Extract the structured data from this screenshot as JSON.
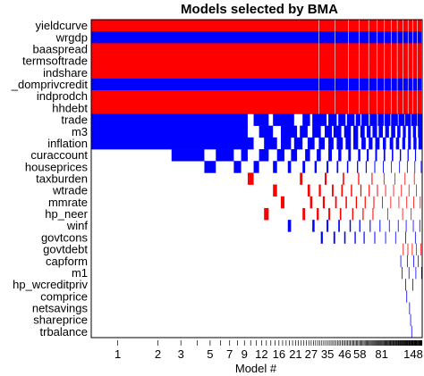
{
  "chart_data": {
    "type": "heatmap",
    "title": "Models selected by BMA",
    "xlabel": "Model #",
    "ylabel": "",
    "variables": [
      "yieldcurve",
      "wrgdp",
      "baaspread",
      "termsoftrade",
      "indshare",
      "_domprivcredit",
      "indprodch",
      "hhdebt",
      "trade",
      "m3",
      "inflation",
      "curaccount",
      "houseprices",
      "taxburden",
      "wtrade",
      "mmrate",
      "hp_neer",
      "winf",
      "govtcons",
      "govtdebt",
      "capform",
      "m1",
      "hp_wcreditpriv",
      "comprice",
      "netsavings",
      "shareprice",
      "trbalance"
    ],
    "x_tick_labels": [
      "1",
      "2",
      "3",
      "5",
      "7",
      "9",
      "12",
      "16",
      "21",
      "27",
      "35",
      "46",
      "58",
      "81",
      "148"
    ],
    "n_models": 148,
    "color_positive": "#ff0000",
    "color_negative": "#0000ff",
    "color_excluded": "#ffffff",
    "sign_codes": {
      "1": "positive coefficient (red)",
      "-1": "negative coefficient (blue)",
      "0": "not included (white)"
    },
    "inclusion_sign": [
      {
        "variable": "yieldcurve",
        "runs": [
          [
            1,
            148,
            1
          ]
        ]
      },
      {
        "variable": "wrgdp",
        "runs": [
          [
            1,
            148,
            -1
          ]
        ]
      },
      {
        "variable": "baaspread",
        "runs": [
          [
            1,
            148,
            1
          ]
        ]
      },
      {
        "variable": "termsoftrade",
        "runs": [
          [
            1,
            148,
            1
          ]
        ]
      },
      {
        "variable": "indshare",
        "runs": [
          [
            1,
            148,
            1
          ]
        ]
      },
      {
        "variable": "_domprivcredit",
        "runs": [
          [
            1,
            148,
            -1
          ]
        ]
      },
      {
        "variable": "indprodch",
        "runs": [
          [
            1,
            148,
            1
          ]
        ]
      },
      {
        "variable": "hhdebt",
        "runs": [
          [
            1,
            148,
            1
          ]
        ]
      },
      {
        "variable": "trade",
        "runs": [
          [
            1,
            9,
            -1
          ],
          [
            11,
            13,
            -1
          ],
          [
            15,
            20,
            -1
          ],
          [
            24,
            26,
            -1
          ],
          [
            28,
            34,
            -1
          ],
          [
            36,
            40,
            -1
          ],
          [
            42,
            46,
            -1
          ],
          [
            48,
            53,
            -1
          ],
          [
            55,
            58,
            -1
          ],
          [
            60,
            66,
            -1
          ],
          [
            68,
            75,
            -1
          ],
          [
            77,
            83,
            -1
          ],
          [
            85,
            92,
            -1
          ],
          [
            94,
            103,
            -1
          ],
          [
            105,
            114,
            -1
          ],
          [
            116,
            125,
            -1
          ],
          [
            127,
            137,
            -1
          ],
          [
            139,
            148,
            -1
          ]
        ]
      },
      {
        "variable": "m3",
        "runs": [
          [
            1,
            9,
            -1
          ],
          [
            12,
            14,
            -1
          ],
          [
            17,
            21,
            -1
          ],
          [
            23,
            25,
            -1
          ],
          [
            28,
            31,
            -1
          ],
          [
            34,
            37,
            -1
          ],
          [
            39,
            43,
            -1
          ],
          [
            46,
            50,
            -1
          ],
          [
            53,
            56,
            -1
          ],
          [
            59,
            62,
            -1
          ],
          [
            65,
            68,
            -1
          ],
          [
            71,
            75,
            -1
          ],
          [
            78,
            82,
            -1
          ],
          [
            86,
            90,
            -1
          ],
          [
            94,
            99,
            -1
          ],
          [
            103,
            107,
            -1
          ],
          [
            112,
            116,
            -1
          ],
          [
            121,
            125,
            -1
          ],
          [
            130,
            135,
            -1
          ],
          [
            140,
            148,
            -1
          ]
        ]
      },
      {
        "variable": "inflation",
        "runs": [
          [
            1,
            10,
            -1
          ],
          [
            13,
            15,
            -1
          ],
          [
            17,
            19,
            -1
          ],
          [
            21,
            23,
            -1
          ],
          [
            26,
            28,
            -1
          ],
          [
            31,
            33,
            -1
          ],
          [
            36,
            38,
            -1
          ],
          [
            41,
            44,
            -1
          ],
          [
            47,
            50,
            -1
          ],
          [
            53,
            56,
            -1
          ],
          [
            60,
            63,
            -1
          ],
          [
            67,
            70,
            -1
          ],
          [
            74,
            78,
            -1
          ],
          [
            83,
            86,
            -1
          ],
          [
            92,
            96,
            -1
          ],
          [
            101,
            105,
            -1
          ],
          [
            111,
            115,
            -1
          ],
          [
            121,
            125,
            -1
          ],
          [
            131,
            136,
            -1
          ],
          [
            141,
            148,
            -1
          ]
        ]
      },
      {
        "variable": "curaccount",
        "runs": [
          [
            3,
            4,
            -1
          ],
          [
            6,
            7,
            -1
          ],
          [
            9,
            9,
            -1
          ],
          [
            12,
            13,
            -1
          ],
          [
            16,
            17,
            -1
          ],
          [
            20,
            21,
            -1
          ],
          [
            25,
            26,
            -1
          ],
          [
            30,
            31,
            -1
          ],
          [
            36,
            37,
            -1
          ],
          [
            42,
            43,
            -1
          ],
          [
            49,
            50,
            -1
          ],
          [
            57,
            58,
            -1
          ],
          [
            65,
            66,
            -1
          ],
          [
            74,
            75,
            -1
          ],
          [
            84,
            85,
            -1
          ],
          [
            95,
            96,
            -1
          ],
          [
            107,
            108,
            -1
          ],
          [
            120,
            121,
            -1
          ],
          [
            134,
            135,
            -1
          ]
        ]
      },
      {
        "variable": "houseprices",
        "runs": [
          [
            5,
            5,
            -1
          ],
          [
            8,
            8,
            -1
          ],
          [
            11,
            11,
            -1
          ],
          [
            15,
            15,
            -1
          ],
          [
            19,
            19,
            -1
          ],
          [
            24,
            24,
            -1
          ],
          [
            29,
            29,
            -1
          ],
          [
            35,
            35,
            -1
          ],
          [
            41,
            41,
            -1
          ],
          [
            48,
            48,
            -1
          ],
          [
            56,
            56,
            -1
          ],
          [
            64,
            64,
            -1
          ],
          [
            73,
            73,
            -1
          ],
          [
            83,
            83,
            -1
          ],
          [
            94,
            94,
            -1
          ],
          [
            106,
            106,
            -1
          ],
          [
            119,
            119,
            -1
          ],
          [
            133,
            133,
            -1
          ],
          [
            146,
            146,
            -1
          ]
        ]
      },
      {
        "variable": "taxburden",
        "runs": [
          [
            10,
            10,
            1
          ],
          [
            23,
            23,
            1
          ],
          [
            34,
            34,
            1
          ],
          [
            45,
            45,
            1
          ],
          [
            57,
            57,
            1
          ],
          [
            70,
            70,
            1
          ],
          [
            84,
            84,
            1
          ],
          [
            99,
            99,
            1
          ],
          [
            115,
            115,
            1
          ],
          [
            132,
            132,
            1
          ]
        ]
      },
      {
        "variable": "wtrade",
        "runs": [
          [
            15,
            15,
            1
          ],
          [
            26,
            26,
            1
          ],
          [
            31,
            31,
            1
          ],
          [
            38,
            38,
            1
          ],
          [
            44,
            44,
            1
          ],
          [
            51,
            51,
            1
          ],
          [
            59,
            59,
            1
          ],
          [
            67,
            67,
            1
          ],
          [
            76,
            76,
            1
          ],
          [
            86,
            86,
            1
          ],
          [
            97,
            97,
            1
          ],
          [
            109,
            109,
            1
          ],
          [
            122,
            122,
            1
          ],
          [
            136,
            136,
            1
          ]
        ]
      },
      {
        "variable": "mmrate",
        "runs": [
          [
            17,
            17,
            1
          ],
          [
            27,
            27,
            1
          ],
          [
            33,
            33,
            1
          ],
          [
            40,
            40,
            1
          ],
          [
            47,
            47,
            1
          ],
          [
            55,
            55,
            1
          ],
          [
            63,
            63,
            1
          ],
          [
            72,
            72,
            1
          ],
          [
            82,
            82,
            1
          ],
          [
            93,
            93,
            1
          ],
          [
            105,
            105,
            1
          ],
          [
            118,
            118,
            1
          ],
          [
            131,
            131,
            1
          ],
          [
            144,
            144,
            1
          ]
        ]
      },
      {
        "variable": "hp_neer",
        "runs": [
          [
            13,
            13,
            1
          ],
          [
            24,
            24,
            1
          ],
          [
            30,
            30,
            1
          ],
          [
            36,
            36,
            1
          ],
          [
            43,
            43,
            1
          ],
          [
            52,
            52,
            1
          ],
          [
            61,
            61,
            1
          ],
          [
            71,
            71,
            1
          ],
          [
            89,
            89,
            1
          ],
          [
            111,
            111,
            1
          ],
          [
            126,
            126,
            1
          ]
        ]
      },
      {
        "variable": "winf",
        "runs": [
          [
            19,
            19,
            -1
          ],
          [
            28,
            28,
            -1
          ],
          [
            35,
            35,
            -1
          ],
          [
            42,
            42,
            -1
          ],
          [
            50,
            50,
            -1
          ],
          [
            58,
            58,
            -1
          ],
          [
            68,
            68,
            -1
          ],
          [
            79,
            79,
            -1
          ],
          [
            91,
            91,
            -1
          ],
          [
            104,
            104,
            -1
          ],
          [
            117,
            117,
            -1
          ],
          [
            130,
            130,
            -1
          ],
          [
            143,
            143,
            -1
          ]
        ]
      },
      {
        "variable": "govtcons",
        "runs": [
          [
            32,
            32,
            -1
          ],
          [
            39,
            39,
            -1
          ],
          [
            46,
            46,
            -1
          ],
          [
            54,
            54,
            -1
          ],
          [
            62,
            62,
            -1
          ],
          [
            73,
            73,
            -1
          ],
          [
            86,
            86,
            -1
          ],
          [
            100,
            100,
            -1
          ],
          [
            116,
            116,
            -1
          ],
          [
            134,
            134,
            -1
          ]
        ]
      },
      {
        "variable": "govtdebt",
        "runs": [
          [
            112,
            112,
            1
          ],
          [
            120,
            120,
            1
          ],
          [
            128,
            128,
            1
          ],
          [
            136,
            136,
            1
          ],
          [
            145,
            145,
            1
          ]
        ]
      },
      {
        "variable": "capform",
        "runs": [
          [
            108,
            108,
            -1
          ],
          [
            119,
            119,
            -1
          ],
          [
            131,
            131,
            -1
          ],
          [
            140,
            140,
            -1
          ]
        ]
      },
      {
        "variable": "m1",
        "runs": [
          [
            110,
            110,
            -1
          ],
          [
            122,
            122,
            -1
          ],
          [
            135,
            135,
            -1
          ],
          [
            147,
            147,
            -1
          ]
        ]
      },
      {
        "variable": "hp_wcreditpriv",
        "runs": [
          [
            116,
            116,
            -1
          ],
          [
            129,
            129,
            -1
          ]
        ]
      },
      {
        "variable": "comprice",
        "runs": [
          [
            118,
            118,
            -1
          ]
        ]
      },
      {
        "variable": "netsavings",
        "runs": [
          [
            123,
            123,
            -1
          ]
        ]
      },
      {
        "variable": "shareprice",
        "runs": [
          [
            125,
            125,
            -1
          ]
        ]
      },
      {
        "variable": "trbalance",
        "runs": [
          [
            127,
            127,
            -1
          ]
        ]
      }
    ],
    "grid": false,
    "legend": "none"
  }
}
